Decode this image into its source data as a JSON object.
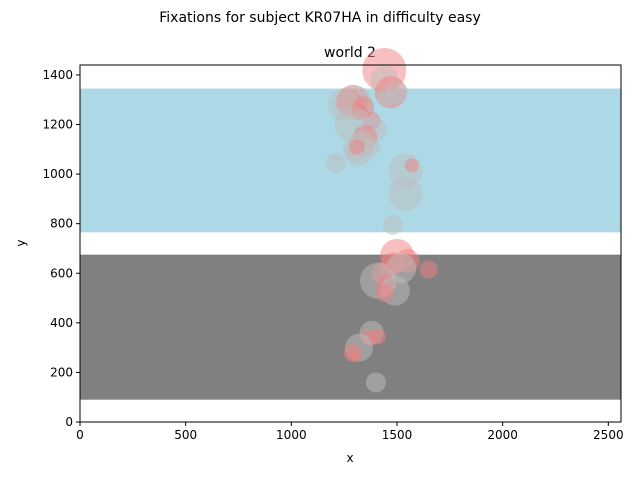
{
  "figure": {
    "suptitle": "Fixations for subject KR07HA in difficulty easy"
  },
  "chart_data": {
    "type": "scatter",
    "title": "world 2",
    "xlabel": "x",
    "ylabel": "y",
    "xlim": [
      0,
      2560
    ],
    "ylim": [
      0,
      1440
    ],
    "xticks": [
      0,
      500,
      1000,
      1500,
      2000,
      2500
    ],
    "yticks": [
      0,
      200,
      400,
      600,
      800,
      1000,
      1200,
      1400
    ],
    "grid": false,
    "legend": "none",
    "regions": [
      {
        "y0": 765,
        "y1": 1345,
        "color": "#add8e6"
      },
      {
        "y0": 90,
        "y1": 675,
        "color": "#808080"
      }
    ],
    "points": [
      {
        "x": 1440,
        "y": 1420,
        "size": 22,
        "color": "#f08080"
      },
      {
        "x": 1440,
        "y": 1380,
        "size": 14,
        "color": "#bebebe"
      },
      {
        "x": 1470,
        "y": 1330,
        "size": 16,
        "color": "#f08080"
      },
      {
        "x": 1450,
        "y": 1310,
        "size": 9,
        "color": "#bebebe"
      },
      {
        "x": 1500,
        "y": 1330,
        "size": 11,
        "color": "#bebebe"
      },
      {
        "x": 1290,
        "y": 1300,
        "size": 15,
        "color": "#f08080"
      },
      {
        "x": 1300,
        "y": 1290,
        "size": 17,
        "color": "#bebebe"
      },
      {
        "x": 1270,
        "y": 1290,
        "size": 13,
        "color": "#f08080"
      },
      {
        "x": 1250,
        "y": 1280,
        "size": 16,
        "color": "#bebebe"
      },
      {
        "x": 1340,
        "y": 1270,
        "size": 11,
        "color": "#f08080"
      },
      {
        "x": 1320,
        "y": 1250,
        "size": 8,
        "color": "#f08080"
      },
      {
        "x": 1380,
        "y": 1215,
        "size": 9,
        "color": "#f08080"
      },
      {
        "x": 1290,
        "y": 1200,
        "size": 18,
        "color": "#bebebe"
      },
      {
        "x": 1400,
        "y": 1180,
        "size": 11,
        "color": "#bebebe"
      },
      {
        "x": 1350,
        "y": 1150,
        "size": 12,
        "color": "#f08080"
      },
      {
        "x": 1330,
        "y": 1120,
        "size": 13,
        "color": "#bebebe"
      },
      {
        "x": 1380,
        "y": 1110,
        "size": 9,
        "color": "#bebebe"
      },
      {
        "x": 1300,
        "y": 1100,
        "size": 12,
        "color": "#bebebe"
      },
      {
        "x": 1320,
        "y": 1090,
        "size": 14,
        "color": "#bebebe"
      },
      {
        "x": 1310,
        "y": 1110,
        "size": 8,
        "color": "#f08080"
      },
      {
        "x": 1210,
        "y": 1045,
        "size": 10,
        "color": "#bebebe"
      },
      {
        "x": 1540,
        "y": 1015,
        "size": 17,
        "color": "#bebebe"
      },
      {
        "x": 1570,
        "y": 1035,
        "size": 7,
        "color": "#f08080"
      },
      {
        "x": 1540,
        "y": 920,
        "size": 17,
        "color": "#bebebe"
      },
      {
        "x": 1480,
        "y": 795,
        "size": 10,
        "color": "#bebebe"
      },
      {
        "x": 1500,
        "y": 670,
        "size": 17,
        "color": "#f08080"
      },
      {
        "x": 1550,
        "y": 650,
        "size": 12,
        "color": "#f08080"
      },
      {
        "x": 1480,
        "y": 640,
        "size": 11,
        "color": "#f08080"
      },
      {
        "x": 1460,
        "y": 610,
        "size": 9,
        "color": "#f08080"
      },
      {
        "x": 1520,
        "y": 620,
        "size": 15,
        "color": "#bebebe"
      },
      {
        "x": 1650,
        "y": 615,
        "size": 9,
        "color": "#f08080"
      },
      {
        "x": 1430,
        "y": 600,
        "size": 11,
        "color": "#f08080"
      },
      {
        "x": 1410,
        "y": 570,
        "size": 18,
        "color": "#bebebe"
      },
      {
        "x": 1450,
        "y": 555,
        "size": 10,
        "color": "#f08080"
      },
      {
        "x": 1490,
        "y": 530,
        "size": 15,
        "color": "#bebebe"
      },
      {
        "x": 1440,
        "y": 520,
        "size": 9,
        "color": "#f08080"
      },
      {
        "x": 1380,
        "y": 360,
        "size": 12,
        "color": "#bebebe"
      },
      {
        "x": 1410,
        "y": 345,
        "size": 8,
        "color": "#f08080"
      },
      {
        "x": 1370,
        "y": 340,
        "size": 8,
        "color": "#f08080"
      },
      {
        "x": 1320,
        "y": 300,
        "size": 14,
        "color": "#bebebe"
      },
      {
        "x": 1290,
        "y": 280,
        "size": 9,
        "color": "#f08080"
      },
      {
        "x": 1300,
        "y": 265,
        "size": 6,
        "color": "#f08080"
      },
      {
        "x": 1400,
        "y": 160,
        "size": 10,
        "color": "#bebebe"
      }
    ]
  }
}
